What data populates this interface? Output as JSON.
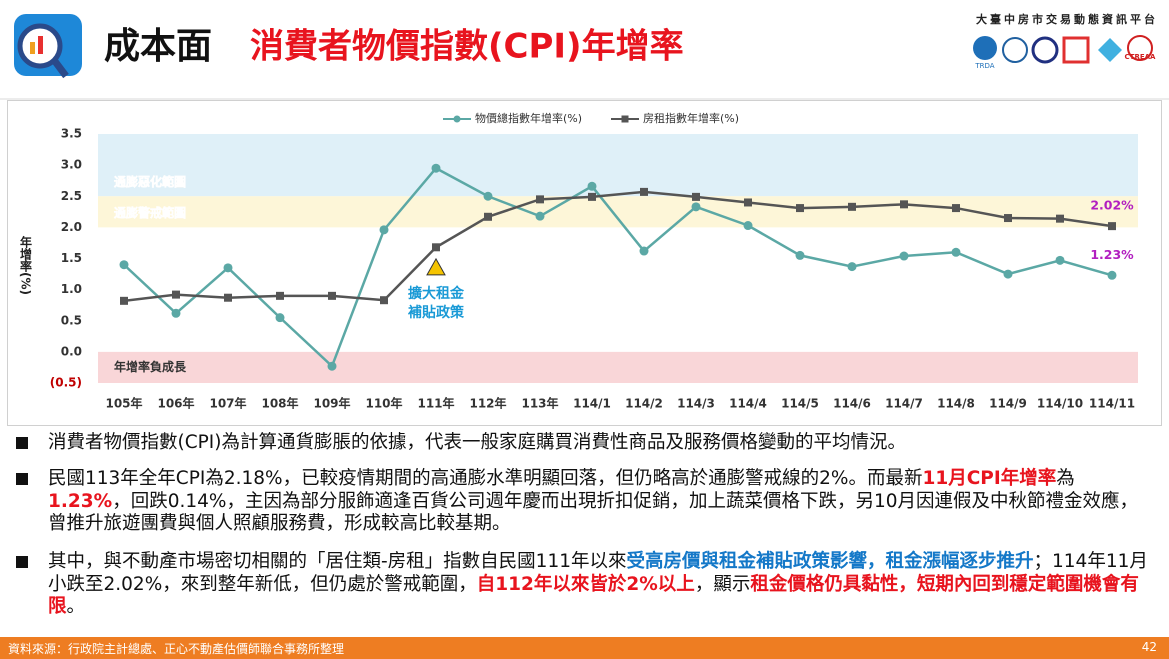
{
  "header": {
    "title_main": "成本面",
    "title_sub": "消費者物價指數(CPI)年增率",
    "platform": "大臺中房市交易動態資訊平台",
    "logos": [
      "TRDA",
      "CTREAA"
    ]
  },
  "chart_data": {
    "type": "line",
    "y_label": "年增率(%)",
    "categories": [
      "105年",
      "106年",
      "107年",
      "108年",
      "109年",
      "110年",
      "111年",
      "112年",
      "113年",
      "114/1",
      "114/2",
      "114/3",
      "114/4",
      "114/5",
      "114/6",
      "114/7",
      "114/8",
      "114/9",
      "114/10",
      "114/11"
    ],
    "series": [
      {
        "name": "物價總指數年增率(%)",
        "color": "#5ba8a5",
        "marker": "circle",
        "values": [
          1.4,
          0.62,
          1.35,
          0.55,
          -0.23,
          1.96,
          2.95,
          2.5,
          2.18,
          2.66,
          1.62,
          2.33,
          2.03,
          1.55,
          1.37,
          1.54,
          1.6,
          1.25,
          1.47,
          1.23
        ],
        "value_labels": [
          null,
          null,
          null,
          null,
          null,
          null,
          null,
          null,
          null,
          null,
          null,
          null,
          null,
          null,
          null,
          null,
          null,
          null,
          null,
          "1.23%"
        ]
      },
      {
        "name": "房租指數年增率(%)",
        "color": "#555555",
        "marker": "square",
        "values": [
          0.82,
          0.92,
          0.87,
          0.9,
          0.9,
          0.83,
          1.68,
          2.17,
          2.45,
          2.49,
          2.57,
          2.49,
          2.4,
          2.31,
          2.33,
          2.37,
          2.31,
          2.15,
          2.14,
          2.02
        ],
        "value_labels": [
          null,
          null,
          null,
          null,
          null,
          null,
          null,
          null,
          null,
          null,
          null,
          null,
          null,
          null,
          null,
          null,
          null,
          null,
          null,
          "2.02%"
        ]
      }
    ],
    "ylim": [
      -0.5,
      3.5
    ],
    "yticks": [
      {
        "value": -0.5,
        "label": "(0.5)"
      },
      {
        "value": 0,
        "label": "0.0"
      },
      0.5,
      {
        "value": 1,
        "label": "1.0"
      },
      1.5,
      {
        "value": 2,
        "label": "2.0"
      },
      2.5,
      {
        "value": 3,
        "label": "3.0"
      },
      3.5
    ],
    "bands": [
      {
        "label": "通膨惡化範圍",
        "from": 2.5,
        "to": 3.5,
        "color": "#dff0f8"
      },
      {
        "label": "通膨警戒範圍",
        "from": 2.0,
        "to": 2.5,
        "color": "#fdf6d8"
      },
      {
        "label": "年增率負成長",
        "from": -0.5,
        "to": 0,
        "color": "#f9d6d8"
      }
    ],
    "annotation": {
      "x": "111年",
      "y": 1.35,
      "lines": [
        "擴大租金",
        "補貼政策"
      ]
    },
    "legend": "top"
  },
  "bullets": [
    [
      {
        "text": "消費者物價指數(CPI)為計算通貨膨脹的依據，代表一般家庭購買消費性商品及服務價格變動的平均情況。"
      }
    ],
    [
      {
        "text": "民國113年全年CPI為2.18%，已較疫情期間的高通膨水準明顯回落，但仍略高於通膨警戒線的2%。而最新"
      },
      {
        "text": "11月CPI年增率",
        "style": "red"
      },
      {
        "text": "為"
      },
      {
        "text": "1.23%",
        "style": "red"
      },
      {
        "text": "，回跌0.14%，主因為部分服飾適逢百貨公司週年慶而出現折扣促銷，加上蔬菜價格下跌，另10月因連假及中秋節禮金效應，曾推升旅遊團費與個人照顧服務費，形成較高比較基期。"
      }
    ],
    [
      {
        "text": "其中，與不動產市場密切相關的「居住類-房租」指數自民國111年以來"
      },
      {
        "text": "受高房價與租金補貼政策影響，租金漲幅逐步推升",
        "style": "blue"
      },
      {
        "text": "；114年11月小跌至2.02%，來到整年新低，但仍處於警戒範圍，"
      },
      {
        "text": "自112年以來皆於2%以上",
        "style": "red"
      },
      {
        "text": "，顯示"
      },
      {
        "text": "租金價格仍具黏性，短期內回到穩定範圍機會有限",
        "style": "red"
      },
      {
        "text": "。"
      }
    ]
  ],
  "footer": {
    "source": "資料來源：行政院主計總處、正心不動產估價師聯合事務所整理",
    "page": "42"
  }
}
